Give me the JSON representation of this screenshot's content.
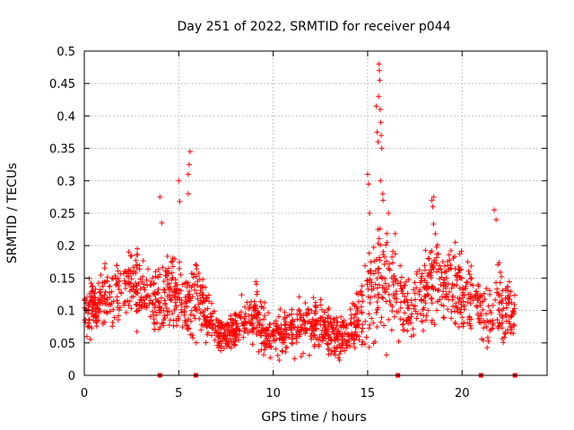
{
  "chart_data": {
    "type": "scatter",
    "title": "Day 251 of 2022, SRMTID for receiver p044",
    "xlabel": "GPS time / hours",
    "ylabel": "SRMTID / TECUs",
    "xlim": [
      0,
      24.5
    ],
    "ylim": [
      0,
      0.5
    ],
    "xticks": [
      0,
      5,
      10,
      15,
      20
    ],
    "xtick_labels": [
      "0",
      "5",
      "10",
      "15",
      "20"
    ],
    "yticks": [
      0,
      0.05,
      0.1,
      0.15,
      0.2,
      0.25,
      0.3,
      0.35,
      0.4,
      0.45,
      0.5
    ],
    "ytick_labels": [
      "0",
      "0.05",
      "0.1",
      "0.15",
      "0.2",
      "0.25",
      "0.3",
      "0.35",
      "0.4",
      "0.45",
      "0.5"
    ],
    "grid": true,
    "marker": "plus",
    "color": "#ff0000",
    "series": [
      {
        "name": "SRMTID",
        "color": "#ff0000",
        "envelope_x": [
          0,
          0.5,
          1,
          1.5,
          2,
          2.5,
          3,
          3.5,
          4,
          4.5,
          5,
          5.5,
          6,
          6.5,
          7,
          7.5,
          8,
          8.5,
          9,
          9.5,
          10,
          10.5,
          11,
          11.5,
          12,
          12.5,
          13,
          13.5,
          14,
          14.5,
          15,
          15.5,
          16,
          16.5,
          17,
          17.5,
          18,
          18.5,
          19,
          19.5,
          20,
          20.5,
          21,
          21.5,
          22,
          22.5,
          22.8
        ],
        "envelope_mid": [
          0.09,
          0.11,
          0.11,
          0.12,
          0.13,
          0.14,
          0.13,
          0.12,
          0.11,
          0.14,
          0.12,
          0.11,
          0.12,
          0.09,
          0.07,
          0.06,
          0.07,
          0.09,
          0.1,
          0.07,
          0.06,
          0.065,
          0.07,
          0.075,
          0.08,
          0.075,
          0.06,
          0.06,
          0.06,
          0.09,
          0.13,
          0.15,
          0.15,
          0.13,
          0.1,
          0.12,
          0.14,
          0.15,
          0.14,
          0.14,
          0.13,
          0.12,
          0.1,
          0.09,
          0.11,
          0.1,
          0.09
        ],
        "envelope_spread": [
          0.04,
          0.04,
          0.05,
          0.05,
          0.05,
          0.06,
          0.06,
          0.05,
          0.06,
          0.07,
          0.06,
          0.06,
          0.06,
          0.04,
          0.03,
          0.025,
          0.03,
          0.04,
          0.05,
          0.04,
          0.035,
          0.035,
          0.04,
          0.04,
          0.04,
          0.04,
          0.035,
          0.035,
          0.035,
          0.05,
          0.07,
          0.1,
          0.09,
          0.07,
          0.05,
          0.06,
          0.07,
          0.08,
          0.06,
          0.06,
          0.06,
          0.06,
          0.05,
          0.05,
          0.06,
          0.05,
          0.04
        ],
        "peaks": [
          {
            "x": 4.0,
            "y": 0.275
          },
          {
            "x": 4.1,
            "y": 0.235
          },
          {
            "x": 5.0,
            "y": 0.3
          },
          {
            "x": 5.05,
            "y": 0.268
          },
          {
            "x": 5.6,
            "y": 0.345
          },
          {
            "x": 5.55,
            "y": 0.325
          },
          {
            "x": 5.5,
            "y": 0.31
          },
          {
            "x": 5.5,
            "y": 0.28
          },
          {
            "x": 15.0,
            "y": 0.31
          },
          {
            "x": 15.05,
            "y": 0.295
          },
          {
            "x": 15.1,
            "y": 0.25
          },
          {
            "x": 15.45,
            "y": 0.415
          },
          {
            "x": 15.5,
            "y": 0.375
          },
          {
            "x": 15.55,
            "y": 0.36
          },
          {
            "x": 15.6,
            "y": 0.48
          },
          {
            "x": 15.62,
            "y": 0.47
          },
          {
            "x": 15.64,
            "y": 0.455
          },
          {
            "x": 15.58,
            "y": 0.43
          },
          {
            "x": 15.66,
            "y": 0.41
          },
          {
            "x": 15.7,
            "y": 0.39
          },
          {
            "x": 15.72,
            "y": 0.37
          },
          {
            "x": 15.75,
            "y": 0.35
          },
          {
            "x": 15.68,
            "y": 0.3
          },
          {
            "x": 15.8,
            "y": 0.28
          },
          {
            "x": 15.82,
            "y": 0.27
          },
          {
            "x": 16.1,
            "y": 0.25
          },
          {
            "x": 18.4,
            "y": 0.27
          },
          {
            "x": 18.5,
            "y": 0.275
          },
          {
            "x": 18.45,
            "y": 0.26
          },
          {
            "x": 21.7,
            "y": 0.255
          },
          {
            "x": 21.8,
            "y": 0.24
          }
        ],
        "zero_markers_x": [
          4.0,
          5.9,
          16.6,
          21.0,
          22.8
        ]
      }
    ]
  }
}
